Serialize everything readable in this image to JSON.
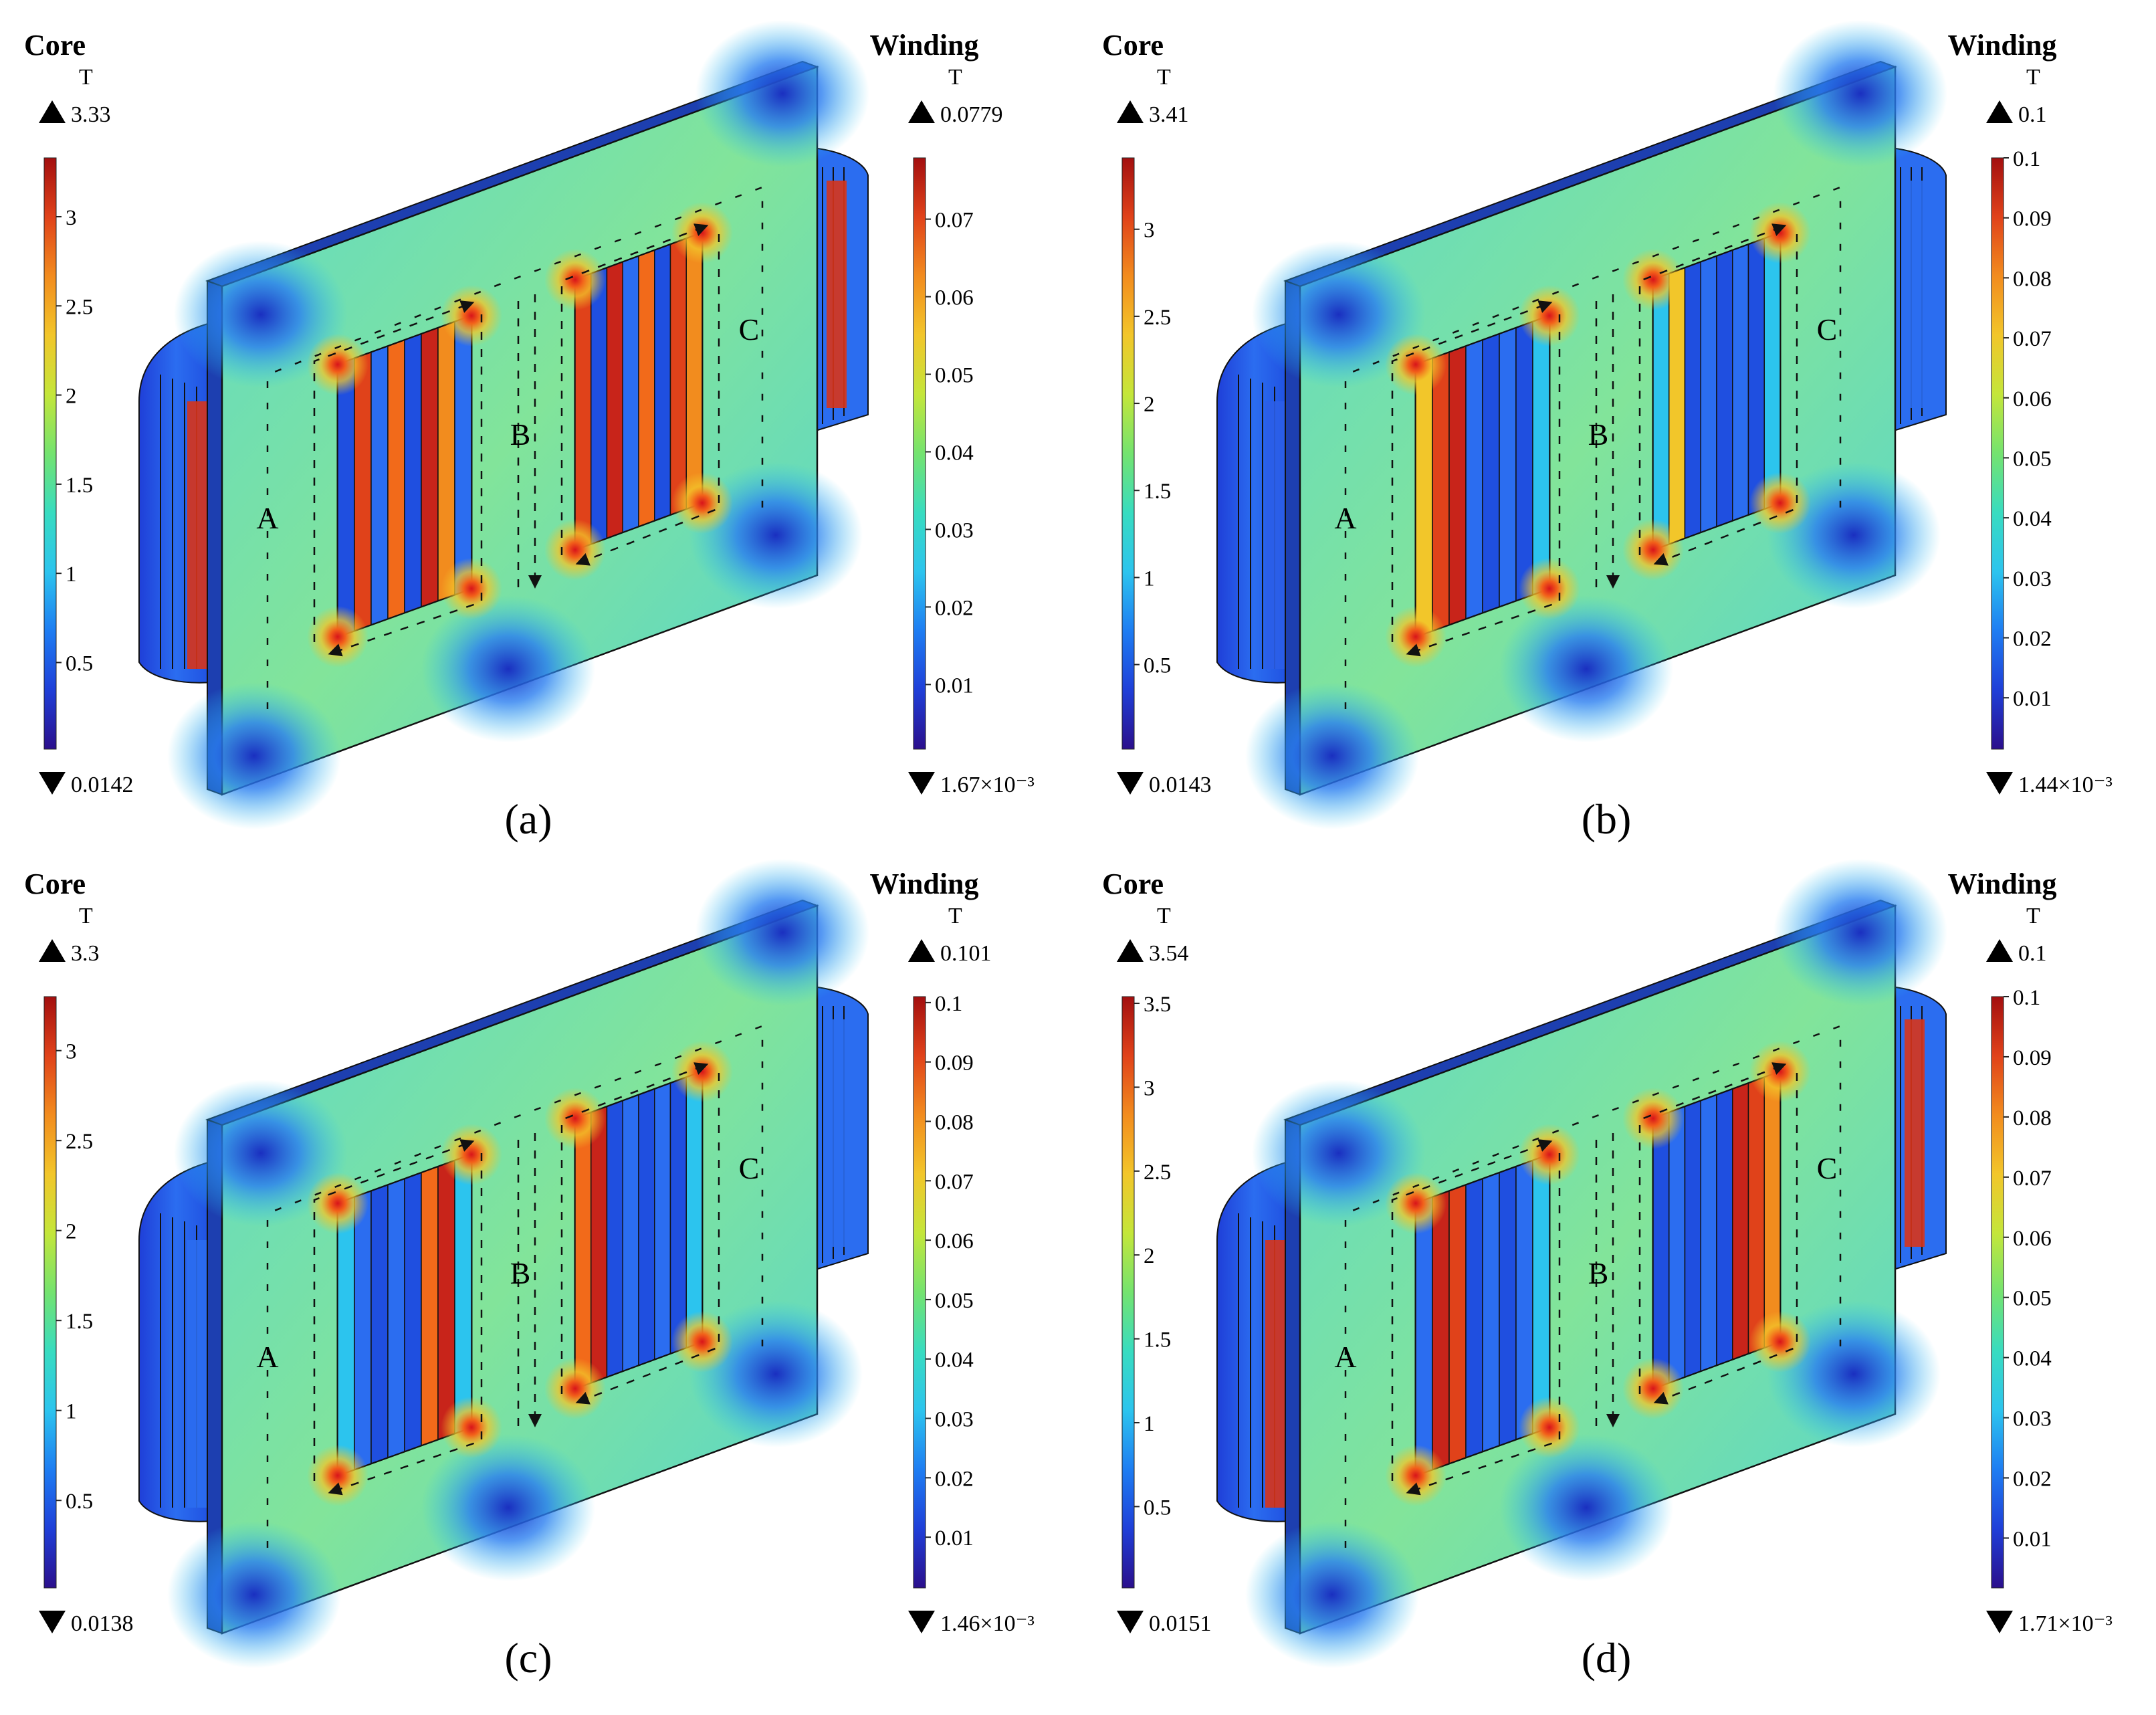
{
  "unit": "T",
  "colormap": [
    "#2b0f8c",
    "#1f3fd8",
    "#1e7df2",
    "#2cc4ee",
    "#38dcc0",
    "#74e36f",
    "#c4e63a",
    "#f2c62a",
    "#f28c1e",
    "#e0421a",
    "#a30f0f"
  ],
  "core_color": {
    "mid": "#7fe3a8",
    "low": "#2a7ef0",
    "high": "#f24a1a",
    "plate_edge": "#1d3fb0"
  },
  "panels": [
    {
      "id": "a",
      "caption": "(a)",
      "core": {
        "title": "Core",
        "unit": "T",
        "max": "3.33",
        "min": "0.0142",
        "ticks": [
          "3",
          "2.5",
          "2",
          "1.5",
          "1",
          "0.5"
        ],
        "tick_values": [
          3,
          2.5,
          2,
          1.5,
          1,
          0.5
        ],
        "range": [
          0.0142,
          3.33
        ]
      },
      "winding": {
        "title": "Winding",
        "unit": "T",
        "max": "0.0779",
        "min": "1.67×10⁻³",
        "ticks": [
          "0.07",
          "0.06",
          "0.05",
          "0.04",
          "0.03",
          "0.02",
          "0.01"
        ],
        "tick_values": [
          0.07,
          0.06,
          0.05,
          0.04,
          0.03,
          0.02,
          0.01
        ],
        "range": [
          0.00167,
          0.0779
        ]
      },
      "limbs": [
        "A",
        "B",
        "C"
      ],
      "window1_strips": [
        "#1f4fe0",
        "#e0421a",
        "#2b6df0",
        "#f26a1a",
        "#1f4fe0",
        "#c8241a",
        "#f28c1e",
        "#2b6df0"
      ],
      "window2_strips": [
        "#e0421a",
        "#1f4fe0",
        "#c8241a",
        "#2b6df0",
        "#f26a1a",
        "#1f4fe0",
        "#e0421a",
        "#f28c1e"
      ],
      "coil_left": "#d8341a",
      "coil_right": "#d8341a"
    },
    {
      "id": "b",
      "caption": "(b)",
      "core": {
        "title": "Core",
        "unit": "T",
        "max": "3.41",
        "min": "0.0143",
        "ticks": [
          "3",
          "2.5",
          "2",
          "1.5",
          "1",
          "0.5"
        ],
        "tick_values": [
          3,
          2.5,
          2,
          1.5,
          1,
          0.5
        ],
        "range": [
          0.0143,
          3.41
        ]
      },
      "winding": {
        "title": "Winding",
        "unit": "T",
        "max": "0.1",
        "min": "1.44×10⁻³",
        "ticks": [
          "0.1",
          "0.09",
          "0.08",
          "0.07",
          "0.06",
          "0.05",
          "0.04",
          "0.03",
          "0.02",
          "0.01"
        ],
        "tick_values": [
          0.1,
          0.09,
          0.08,
          0.07,
          0.06,
          0.05,
          0.04,
          0.03,
          0.02,
          0.01
        ],
        "range": [
          0.00144,
          0.1
        ]
      },
      "limbs": [
        "A",
        "B",
        "C"
      ],
      "window1_strips": [
        "#f2c62a",
        "#e0421a",
        "#c8241a",
        "#2b6df0",
        "#1f4fe0",
        "#2b6df0",
        "#1f4fe0",
        "#2cc4ee"
      ],
      "window2_strips": [
        "#2cc4ee",
        "#f2c62a",
        "#1f4fe0",
        "#2b6df0",
        "#1f4fe0",
        "#2b6df0",
        "#1f4fe0",
        "#2cc4ee"
      ],
      "coil_left": "#2b5ee8",
      "coil_right": "#2b6df0"
    },
    {
      "id": "c",
      "caption": "(c)",
      "core": {
        "title": "Core",
        "unit": "T",
        "max": "3.3",
        "min": "0.0138",
        "ticks": [
          "3",
          "2.5",
          "2",
          "1.5",
          "1",
          "0.5"
        ],
        "tick_values": [
          3,
          2.5,
          2,
          1.5,
          1,
          0.5
        ],
        "range": [
          0.0138,
          3.3
        ]
      },
      "winding": {
        "title": "Winding",
        "unit": "T",
        "max": "0.101",
        "min": "1.46×10⁻³",
        "ticks": [
          "0.1",
          "0.09",
          "0.08",
          "0.07",
          "0.06",
          "0.05",
          "0.04",
          "0.03",
          "0.02",
          "0.01"
        ],
        "tick_values": [
          0.1,
          0.09,
          0.08,
          0.07,
          0.06,
          0.05,
          0.04,
          0.03,
          0.02,
          0.01
        ],
        "range": [
          0.00146,
          0.101
        ]
      },
      "limbs": [
        "A",
        "B",
        "C"
      ],
      "window1_strips": [
        "#2cc4ee",
        "#2b6df0",
        "#1f4fe0",
        "#2b6df0",
        "#1f4fe0",
        "#f26a1a",
        "#c8241a",
        "#2cc4ee"
      ],
      "window2_strips": [
        "#f26a1a",
        "#c8241a",
        "#1f4fe0",
        "#2b6df0",
        "#1f4fe0",
        "#2b6df0",
        "#1f4fe0",
        "#2cc4ee"
      ],
      "coil_left": "#2b6df0",
      "coil_right": "#2b6df0"
    },
    {
      "id": "d",
      "caption": "(d)",
      "core": {
        "title": "Core",
        "unit": "T",
        "max": "3.54",
        "min": "0.0151",
        "ticks": [
          "3.5",
          "3",
          "2.5",
          "2",
          "1.5",
          "1",
          "0.5"
        ],
        "tick_values": [
          3.5,
          3,
          2.5,
          2,
          1.5,
          1,
          0.5
        ],
        "range": [
          0.0151,
          3.54
        ]
      },
      "winding": {
        "title": "Winding",
        "unit": "T",
        "max": "0.1",
        "min": "1.71×10⁻³",
        "ticks": [
          "0.1",
          "0.09",
          "0.08",
          "0.07",
          "0.06",
          "0.05",
          "0.04",
          "0.03",
          "0.02",
          "0.01"
        ],
        "tick_values": [
          0.1,
          0.09,
          0.08,
          0.07,
          0.06,
          0.05,
          0.04,
          0.03,
          0.02,
          0.01
        ],
        "range": [
          0.00171,
          0.1
        ]
      },
      "limbs": [
        "A",
        "B",
        "C"
      ],
      "window1_strips": [
        "#2b6df0",
        "#c8241a",
        "#e0421a",
        "#1f4fe0",
        "#2b6df0",
        "#1f4fe0",
        "#2b6df0",
        "#2cc4ee"
      ],
      "window2_strips": [
        "#1f4fe0",
        "#2b6df0",
        "#1f4fe0",
        "#2b6df0",
        "#1f4fe0",
        "#c8241a",
        "#e0421a",
        "#f28c1e"
      ],
      "coil_left": "#d8341a",
      "coil_right": "#d8341a"
    }
  ]
}
